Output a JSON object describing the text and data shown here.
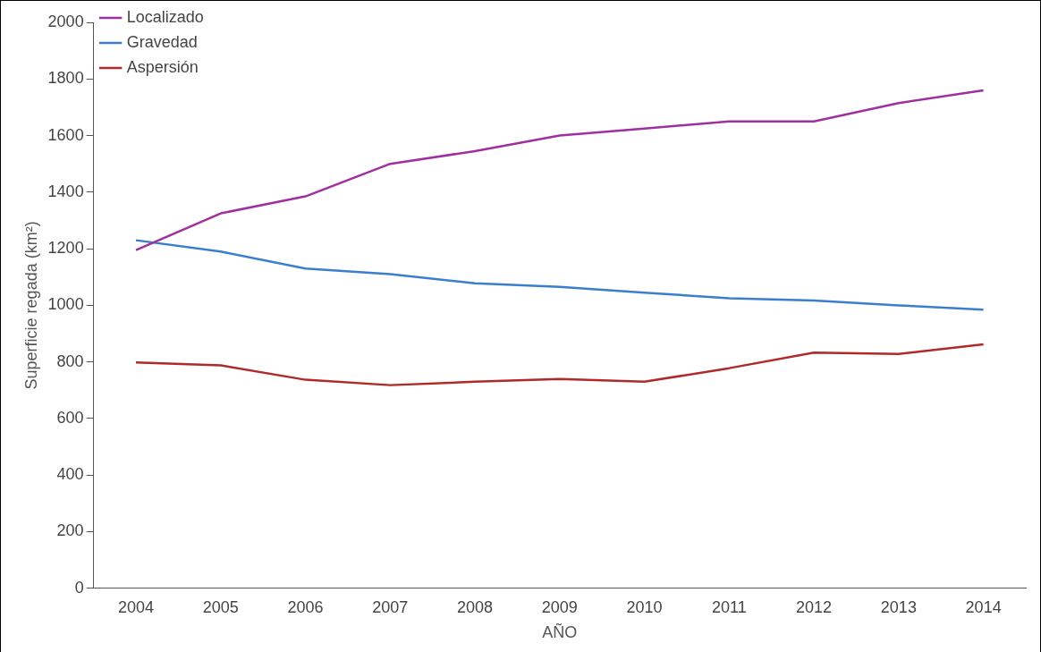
{
  "chart_data": {
    "type": "line",
    "xlabel": "AÑO",
    "ylabel": "Superficie regada (km²)",
    "categories": [
      "2004",
      "2005",
      "2006",
      "2007",
      "2008",
      "2009",
      "2010",
      "2011",
      "2012",
      "2013",
      "2014"
    ],
    "series": [
      {
        "name": "Localizado",
        "color": "#a0309f",
        "values": [
          1195,
          1325,
          1385,
          1500,
          1545,
          1600,
          1625,
          1650,
          1650,
          1715,
          1760
        ]
      },
      {
        "name": "Gravedad",
        "color": "#3a7fcf",
        "values": [
          1230,
          1190,
          1130,
          1110,
          1078,
          1065,
          1045,
          1025,
          1017,
          1000,
          985
        ]
      },
      {
        "name": "Aspersión",
        "color": "#b02a2a",
        "values": [
          798,
          788,
          737,
          718,
          730,
          740,
          730,
          778,
          833,
          828,
          862
        ]
      }
    ],
    "ylim": [
      0,
      2000
    ],
    "yticks": [
      0,
      200,
      400,
      600,
      800,
      1000,
      1200,
      1400,
      1600,
      1800,
      2000
    ],
    "grid": false,
    "legend": "top left",
    "marker": "none",
    "line_style": "solid"
  }
}
